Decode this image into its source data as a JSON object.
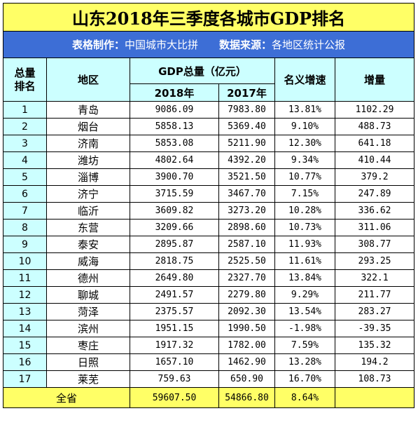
{
  "title": "山东2018年三季度各城市GDP排名",
  "credits": {
    "maker_label": "表格制作：",
    "maker_value": "中国城市大比拼",
    "source_label": "数据来源：",
    "source_value": "各地区统计公报"
  },
  "headers": {
    "rank": "总量排名",
    "region": "地区",
    "gdp_total": "GDP总量（亿元）",
    "year_2018": "2018年",
    "year_2017": "2017年",
    "growth": "名义增速",
    "increase": "增量"
  },
  "rows": [
    {
      "rank": "1",
      "city": "青岛",
      "gdp2018": "9086.09",
      "gdp2017": "7983.80",
      "growth": "13.81%",
      "increase": "1102.29"
    },
    {
      "rank": "2",
      "city": "烟台",
      "gdp2018": "5858.13",
      "gdp2017": "5369.40",
      "growth": "9.10%",
      "increase": "488.73"
    },
    {
      "rank": "3",
      "city": "济南",
      "gdp2018": "5853.08",
      "gdp2017": "5211.90",
      "growth": "12.30%",
      "increase": "641.18"
    },
    {
      "rank": "4",
      "city": "潍坊",
      "gdp2018": "4802.64",
      "gdp2017": "4392.20",
      "growth": "9.34%",
      "increase": "410.44"
    },
    {
      "rank": "5",
      "city": "淄博",
      "gdp2018": "3900.70",
      "gdp2017": "3521.50",
      "growth": "10.77%",
      "increase": "379.2"
    },
    {
      "rank": "6",
      "city": "济宁",
      "gdp2018": "3715.59",
      "gdp2017": "3467.70",
      "growth": "7.15%",
      "increase": "247.89"
    },
    {
      "rank": "7",
      "city": "临沂",
      "gdp2018": "3609.82",
      "gdp2017": "3273.20",
      "growth": "10.28%",
      "increase": "336.62"
    },
    {
      "rank": "8",
      "city": "东营",
      "gdp2018": "3209.66",
      "gdp2017": "2898.60",
      "growth": "10.73%",
      "increase": "311.06"
    },
    {
      "rank": "9",
      "city": "泰安",
      "gdp2018": "2895.87",
      "gdp2017": "2587.10",
      "growth": "11.93%",
      "increase": "308.77"
    },
    {
      "rank": "10",
      "city": "威海",
      "gdp2018": "2818.75",
      "gdp2017": "2525.50",
      "growth": "11.61%",
      "increase": "293.25"
    },
    {
      "rank": "11",
      "city": "德州",
      "gdp2018": "2649.80",
      "gdp2017": "2327.70",
      "growth": "13.84%",
      "increase": "322.1"
    },
    {
      "rank": "12",
      "city": "聊城",
      "gdp2018": "2491.57",
      "gdp2017": "2279.80",
      "growth": "9.29%",
      "increase": "211.77"
    },
    {
      "rank": "13",
      "city": "菏泽",
      "gdp2018": "2375.57",
      "gdp2017": "2092.30",
      "growth": "13.54%",
      "increase": "283.27"
    },
    {
      "rank": "14",
      "city": "滨州",
      "gdp2018": "1951.15",
      "gdp2017": "1990.50",
      "growth": "-1.98%",
      "increase": "-39.35"
    },
    {
      "rank": "15",
      "city": "枣庄",
      "gdp2018": "1917.32",
      "gdp2017": "1782.00",
      "growth": "7.59%",
      "increase": "135.32"
    },
    {
      "rank": "16",
      "city": "日照",
      "gdp2018": "1657.10",
      "gdp2017": "1462.90",
      "growth": "13.28%",
      "increase": "194.2"
    },
    {
      "rank": "17",
      "city": "莱芜",
      "gdp2018": "759.63",
      "gdp2017": "650.90",
      "growth": "16.70%",
      "increase": "108.73"
    }
  ],
  "total": {
    "label": "全省",
    "gdp2018": "59607.50",
    "gdp2017": "54866.80",
    "growth": "8.64%",
    "increase": ""
  },
  "colors": {
    "title_bg": "#ffff66",
    "credit_bg": "#3d6ed6",
    "header_bg": "#ccffff",
    "total_bg": "#ffff66"
  }
}
